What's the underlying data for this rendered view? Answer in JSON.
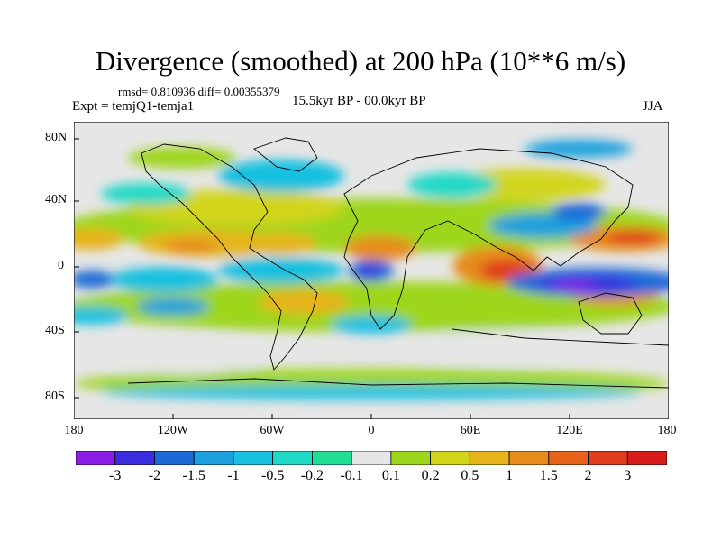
{
  "title": "Divergence (smoothed) at 200 hPa (10**6 m/s)",
  "stats_line": "rmsd= 0.810936 diff= 0.00355379",
  "experiment": "Expt = temjQ1-temja1",
  "period": "15.5kyr BP - 00.0kyr BP",
  "season": "JJA",
  "y_axis_labels": [
    "80N",
    "40N",
    "0",
    "40S",
    "80S"
  ],
  "x_axis_labels": [
    "180",
    "120W",
    "60W",
    "0",
    "60E",
    "120E",
    "180"
  ],
  "colorbar": {
    "labels": [
      "-3",
      "-2",
      "-1.5",
      "-1",
      "-0.5",
      "-0.2",
      "-0.1",
      "0.1",
      "0.2",
      "0.5",
      "1",
      "1.5",
      "2",
      "3"
    ],
    "colors": [
      "#8b1fe8",
      "#3a2de0",
      "#1a6ad8",
      "#1da0dd",
      "#19c0e0",
      "#20d9c7",
      "#21dd95",
      "#e6e6e6",
      "#9ed61e",
      "#d2d51a",
      "#e6b41b",
      "#e68c1a",
      "#e6641a",
      "#e03c1e",
      "#d81c1c"
    ]
  }
}
